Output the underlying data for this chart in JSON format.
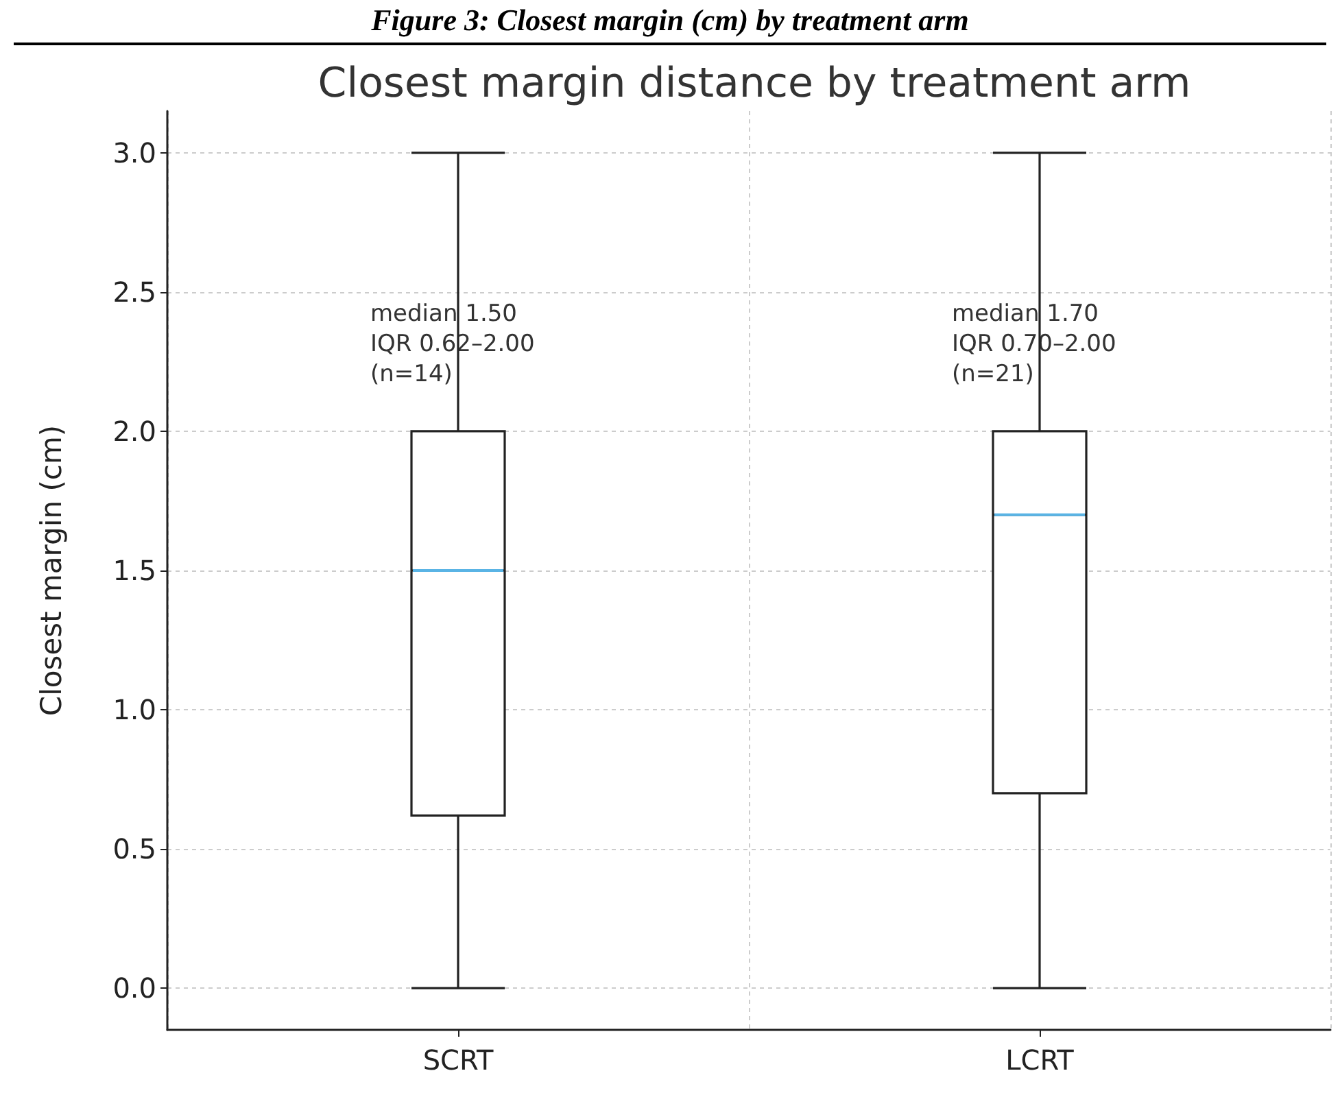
{
  "chart_data": {
    "type": "box",
    "title": "Closest margin distance by treatment arm",
    "ylabel": "Closest margin (cm)",
    "categories": [
      "SCRT",
      "LCRT"
    ],
    "series": [
      {
        "color": "#222222",
        "boxes": [
          {
            "low": 0.0,
            "q1": 0.62,
            "median": 1.5,
            "q3": 2.0,
            "high": 3.0
          },
          {
            "low": 0.0,
            "q1": 0.7,
            "median": 1.7,
            "q3": 2.0,
            "high": 3.0
          }
        ]
      }
    ],
    "ylim": [
      -0.15,
      3.15
    ],
    "yticks": [
      {
        "value": 0,
        "label": "0.0"
      },
      {
        "value": 0.5,
        "label": "0.5"
      },
      {
        "value": 1,
        "label": "1.0"
      },
      {
        "value": 1.5,
        "label": "1.5"
      },
      {
        "value": 2,
        "label": "2.0"
      },
      {
        "value": 2.5,
        "label": "2.5"
      },
      {
        "value": 3,
        "label": "3.0"
      }
    ],
    "grid": true,
    "annotations": [
      "Figure 3: Closest margin (cm) by treatment arm",
      {
        "text": "median 1.50\nIQR 0.62–2.00\n(n=14)",
        "x": "SCRT",
        "y": 2.15
      },
      {
        "text": "median 1.70\nIQR 0.70–2.00\n(n=21)",
        "x": "LCRT",
        "y": 2.15
      }
    ]
  }
}
